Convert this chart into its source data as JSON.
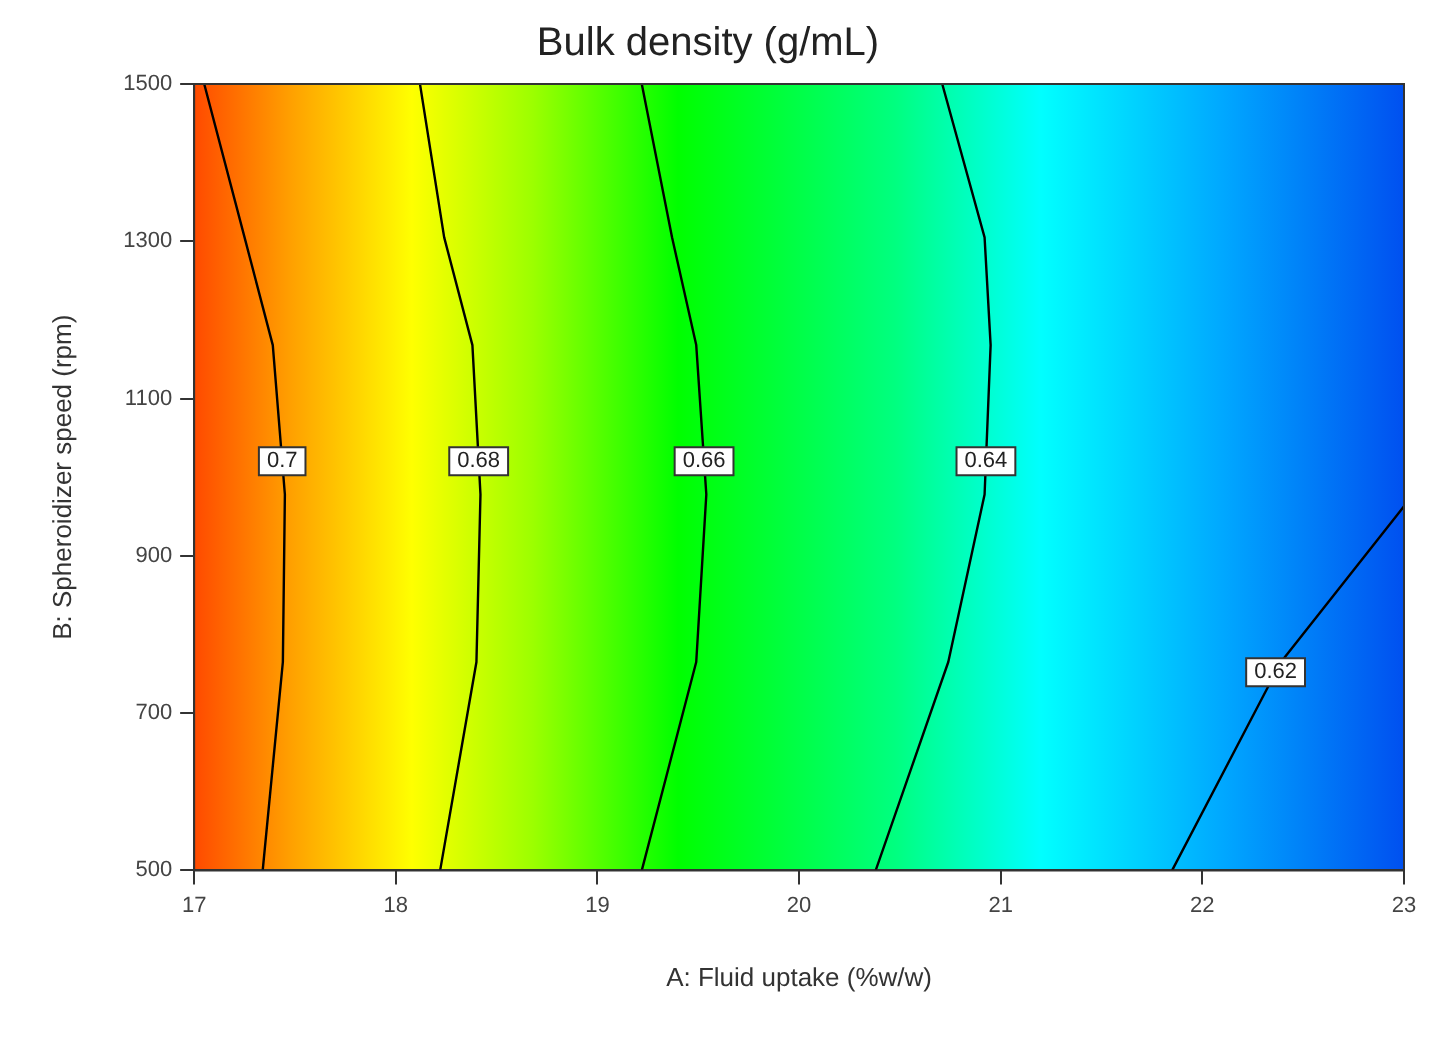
{
  "chart_data": {
    "type": "line",
    "title": "Bulk density (g/mL)",
    "xlabel": "A: Fluid uptake (%w/w)",
    "ylabel": "B: Spheroidizer speed (rpm)",
    "xlim": [
      17,
      23
    ],
    "xticks": [
      17,
      18,
      19,
      20,
      21,
      22,
      23
    ],
    "ylim": [
      500,
      1500
    ],
    "yticks": [
      500,
      700,
      900,
      1100,
      1300,
      1500
    ],
    "grid": false,
    "legend": false,
    "marker": "none",
    "line_style": "solid",
    "series": [
      {
        "name": "0.7",
        "color": "#000000",
        "x": [
          17.05,
          17.25,
          17.39,
          17.45,
          17.44,
          17.34
        ],
        "values": [
          1500,
          1305,
          1168,
          978,
          765,
          500
        ]
      },
      {
        "name": "0.68",
        "color": "#000000",
        "x": [
          18.12,
          18.24,
          18.38,
          18.42,
          18.4,
          18.22
        ],
        "values": [
          1500,
          1305,
          1168,
          978,
          765,
          500
        ]
      },
      {
        "name": "0.66",
        "color": "#000000",
        "x": [
          19.22,
          19.37,
          19.49,
          19.54,
          19.49,
          19.22
        ],
        "values": [
          1500,
          1305,
          1168,
          978,
          765,
          500
        ]
      },
      {
        "name": "0.64",
        "color": "#000000",
        "x": [
          20.71,
          20.92,
          20.95,
          20.92,
          20.74,
          20.38
        ],
        "values": [
          1500,
          1305,
          1168,
          978,
          765,
          500
        ]
      },
      {
        "name": "0.62",
        "color": "#000000",
        "x": [
          23,
          22.39,
          21.85
        ],
        "values": [
          963,
          765,
          500
        ]
      }
    ]
  }
}
